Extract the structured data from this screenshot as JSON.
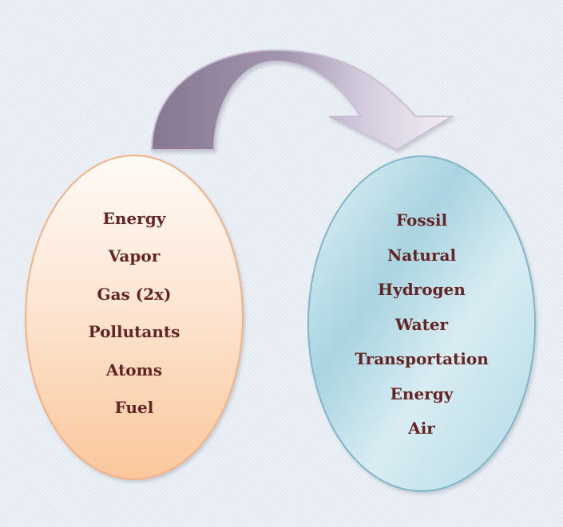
{
  "left_ellipse": {
    "items": [
      "Energy",
      "Vapor",
      "Gas (2x)",
      "Pollutants",
      "Atoms",
      "Fuel"
    ]
  },
  "right_ellipse": {
    "items": [
      "Fossil",
      "Natural",
      "Hydrogen",
      "Water",
      "Transportation",
      "Energy",
      "Air"
    ]
  },
  "colors": {
    "text": "#632423",
    "left_fill_top": "#fffaf6",
    "left_fill_bottom": "#fbc79c",
    "left_border": "#f3b184",
    "right_fill_light": "#e4f2f7",
    "right_fill_dark": "#a9d4e1",
    "right_border": "#7fb7c9",
    "arrow_dark": "#85778f",
    "arrow_light": "#ece7f3",
    "arrow_border": "#c9c0d4"
  }
}
